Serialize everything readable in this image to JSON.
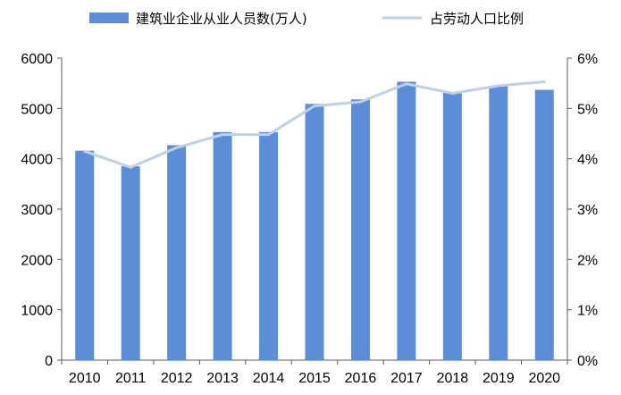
{
  "chart_data": {
    "type": "bar",
    "categories": [
      "2010",
      "2011",
      "2012",
      "2013",
      "2014",
      "2015",
      "2016",
      "2017",
      "2018",
      "2019",
      "2020"
    ],
    "series": [
      {
        "name": "建筑业企业从业人员数(万人)",
        "type": "bar",
        "axis": "left",
        "color": "#5B8ED6",
        "values": [
          4160,
          3850,
          4270,
          4530,
          4530,
          5090,
          5180,
          5530,
          5320,
          5440,
          5370
        ]
      },
      {
        "name": "占劳动人口比例",
        "type": "line",
        "axis": "right",
        "color": "#BDD1E6",
        "values": [
          4.15,
          3.83,
          4.22,
          4.48,
          4.48,
          5.05,
          5.13,
          5.49,
          5.3,
          5.45,
          5.53
        ]
      }
    ],
    "y_left": {
      "ylim": [
        0,
        6000
      ],
      "ticks": [
        "0",
        "1000",
        "2000",
        "3000",
        "4000",
        "5000",
        "6000"
      ]
    },
    "y_right": {
      "ylim": [
        0,
        6
      ],
      "ticks": [
        "0%",
        "1%",
        "2%",
        "3%",
        "4%",
        "5%",
        "6%"
      ]
    },
    "grid": false,
    "legend_position": "top"
  }
}
